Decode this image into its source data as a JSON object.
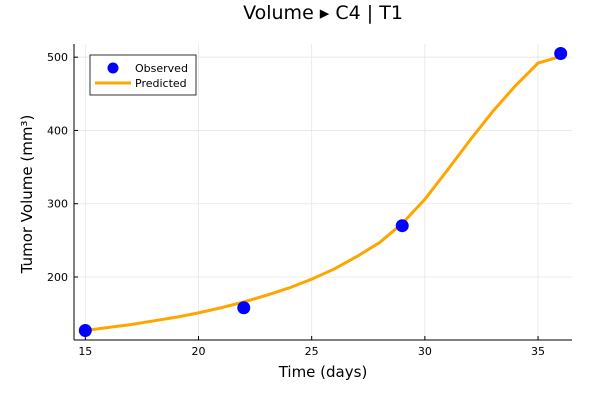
{
  "chart_data": {
    "type": "line",
    "title": "Volume ▸ C4 | T1",
    "xlabel": "Time (days)",
    "ylabel": "Tumor Volume (mm³)",
    "xlim": [
      14.5,
      36.5
    ],
    "ylim": [
      114,
      518
    ],
    "xticks": [
      15,
      20,
      25,
      30,
      35
    ],
    "yticks": [
      200,
      300,
      400,
      500
    ],
    "grid": true,
    "legend_position": "top-left",
    "series": [
      {
        "name": "Observed",
        "kind": "scatter",
        "color": "#0000ff",
        "x": [
          15,
          22,
          29,
          36
        ],
        "y": [
          127,
          158,
          270,
          505
        ]
      },
      {
        "name": "Predicted",
        "kind": "line",
        "color": "#ffa500",
        "x": [
          15,
          16,
          17,
          18,
          19,
          20,
          21,
          22,
          23,
          24,
          25,
          26,
          27,
          28,
          29,
          30,
          31,
          32,
          33,
          34,
          35,
          36
        ],
        "y": [
          127,
          131,
          135,
          140,
          145,
          151,
          158,
          166,
          175,
          185,
          197,
          211,
          228,
          247,
          273,
          306,
          346,
          387,
          426,
          461,
          492,
          501
        ]
      }
    ]
  }
}
